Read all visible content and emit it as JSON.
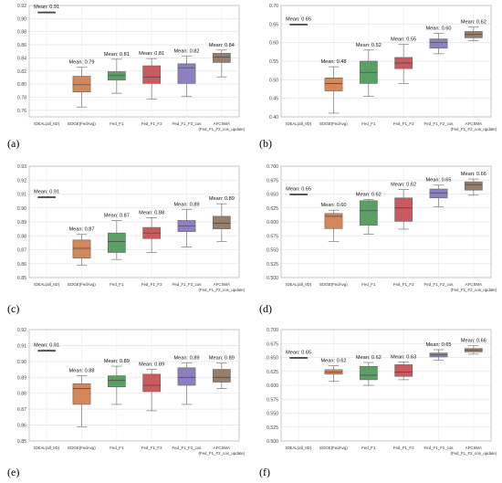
{
  "panel_labels": [
    "(a)",
    "(b)",
    "(c)",
    "(d)",
    "(e)",
    "(f)"
  ],
  "chart_data": [
    {
      "type": "box",
      "categories": [
        "IDEAL(all_IID)",
        "EDGE(FedAvg)",
        "Fed_F1",
        "Fed_F1_F2",
        "Fed_F1_F2_cos",
        "AFCSMA\n(Fed_F1_F2_cos_update)"
      ],
      "ylim": [
        0.75,
        0.92
      ],
      "yticks": [
        0.76,
        0.78,
        0.8,
        0.82,
        0.84,
        0.86,
        0.88,
        0.9,
        0.92
      ],
      "ytick_labels": [
        "0.76",
        "0.78",
        "0.80",
        "0.82",
        "0.84",
        "0.86",
        "0.88",
        "0.90",
        "0.92"
      ],
      "boxes": [
        {
          "min": 0.91,
          "q1": 0.91,
          "median": 0.91,
          "q3": 0.91,
          "max": 0.91
        },
        {
          "min": 0.765,
          "q1": 0.788,
          "median": 0.799,
          "q3": 0.812,
          "max": 0.826
        },
        {
          "min": 0.786,
          "q1": 0.806,
          "median": 0.813,
          "q3": 0.819,
          "max": 0.838
        },
        {
          "min": 0.777,
          "q1": 0.801,
          "median": 0.811,
          "q3": 0.828,
          "max": 0.839
        },
        {
          "min": 0.781,
          "q1": 0.801,
          "median": 0.825,
          "q3": 0.831,
          "max": 0.843
        },
        {
          "min": 0.811,
          "q1": 0.833,
          "median": 0.841,
          "q3": 0.847,
          "max": 0.852
        }
      ],
      "means": [
        "Mean: 0.91",
        "Mean: 0.79",
        "Mean: 0.81",
        "Mean: 0.81",
        "Mean: 0.82",
        "Mean: 0.84"
      ],
      "colors": [
        "#4c4c4c",
        "#d3875a",
        "#5aa065",
        "#c95a5f",
        "#8e80c0",
        "#967e6b"
      ]
    },
    {
      "type": "box",
      "categories": [
        "IDEAL(all_IID)",
        "EDGE(FedAvg)",
        "Fed_F1",
        "Fed_F1_F2",
        "Fed_F1_F2_cos",
        "AFCSMA\n(Fed_F1_F2_cos_update)"
      ],
      "ylim": [
        0.4,
        0.7
      ],
      "yticks": [
        0.4,
        0.45,
        0.5,
        0.55,
        0.6,
        0.65,
        0.7
      ],
      "ytick_labels": [
        "0.40",
        "0.45",
        "0.50",
        "0.55",
        "0.60",
        "0.65",
        "0.70"
      ],
      "boxes": [
        {
          "min": 0.65,
          "q1": 0.65,
          "median": 0.65,
          "q3": 0.65,
          "max": 0.65
        },
        {
          "min": 0.41,
          "q1": 0.47,
          "median": 0.49,
          "q3": 0.505,
          "max": 0.535
        },
        {
          "min": 0.455,
          "q1": 0.49,
          "median": 0.52,
          "q3": 0.55,
          "max": 0.58
        },
        {
          "min": 0.49,
          "q1": 0.53,
          "median": 0.545,
          "q3": 0.56,
          "max": 0.595
        },
        {
          "min": 0.57,
          "q1": 0.585,
          "median": 0.6,
          "q3": 0.61,
          "max": 0.625
        },
        {
          "min": 0.605,
          "q1": 0.613,
          "median": 0.622,
          "q3": 0.63,
          "max": 0.642
        }
      ],
      "means": [
        "Mean: 0.65",
        "Mean: 0.48",
        "Mean: 0.52",
        "Mean: 0.55",
        "Mean: 0.60",
        "Mean: 0.62"
      ],
      "colors": [
        "#4c4c4c",
        "#d3875a",
        "#5aa065",
        "#c95a5f",
        "#8e80c0",
        "#967e6b"
      ]
    },
    {
      "type": "box",
      "categories": [
        "IDEAL(all_IID)",
        "EDGE(FedAvg)",
        "Fed_F1",
        "Fed_F1_F2",
        "Fed_F1_F2_cos",
        "AFCSMA\n(Fed_F1_F2_cos_update)"
      ],
      "ylim": [
        0.85,
        0.93
      ],
      "yticks": [
        0.85,
        0.86,
        0.87,
        0.88,
        0.89,
        0.9,
        0.91,
        0.92,
        0.93
      ],
      "ytick_labels": [
        "0.85",
        "0.86",
        "0.87",
        "0.88",
        "0.89",
        "0.90",
        "0.91",
        "0.92",
        "0.93"
      ],
      "boxes": [
        {
          "min": 0.908,
          "q1": 0.908,
          "median": 0.908,
          "q3": 0.908,
          "max": 0.908
        },
        {
          "min": 0.859,
          "q1": 0.864,
          "median": 0.871,
          "q3": 0.877,
          "max": 0.881
        },
        {
          "min": 0.863,
          "q1": 0.868,
          "median": 0.876,
          "q3": 0.882,
          "max": 0.891
        },
        {
          "min": 0.868,
          "q1": 0.878,
          "median": 0.882,
          "q3": 0.886,
          "max": 0.893
        },
        {
          "min": 0.872,
          "q1": 0.883,
          "median": 0.887,
          "q3": 0.891,
          "max": 0.899
        },
        {
          "min": 0.876,
          "q1": 0.885,
          "median": 0.889,
          "q3": 0.894,
          "max": 0.903
        }
      ],
      "means": [
        "Mean: 0.91",
        "Mean: 0.87",
        "Mean: 0.87",
        "Mean: 0.88",
        "Mean: 0.89",
        "Mean: 0.89"
      ],
      "colors": [
        "#4c4c4c",
        "#d3875a",
        "#5aa065",
        "#c95a5f",
        "#8e80c0",
        "#967e6b"
      ]
    },
    {
      "type": "box",
      "categories": [
        "IDEAL(all_IID)",
        "EDGE(FedAvg)",
        "Fed_F1",
        "Fed_F1_F2",
        "Fed_F1_F2_cos",
        "AFCSMA\n(Fed_F1_F2_cos_update)"
      ],
      "ylim": [
        0.5,
        0.7
      ],
      "yticks": [
        0.5,
        0.525,
        0.55,
        0.575,
        0.6,
        0.625,
        0.65,
        0.675,
        0.7
      ],
      "ytick_labels": [
        "0.500",
        "0.525",
        "0.550",
        "0.575",
        "0.600",
        "0.625",
        "0.650",
        "0.675",
        "0.700"
      ],
      "boxes": [
        {
          "min": 0.65,
          "q1": 0.65,
          "median": 0.65,
          "q3": 0.65,
          "max": 0.65
        },
        {
          "min": 0.565,
          "q1": 0.588,
          "median": 0.61,
          "q3": 0.615,
          "max": 0.621
        },
        {
          "min": 0.578,
          "q1": 0.594,
          "median": 0.62,
          "q3": 0.638,
          "max": 0.64
        },
        {
          "min": 0.587,
          "q1": 0.601,
          "median": 0.625,
          "q3": 0.643,
          "max": 0.658
        },
        {
          "min": 0.627,
          "q1": 0.643,
          "median": 0.652,
          "q3": 0.659,
          "max": 0.666
        },
        {
          "min": 0.648,
          "q1": 0.657,
          "median": 0.667,
          "q3": 0.672,
          "max": 0.677
        }
      ],
      "means": [
        "Mean: 0.65",
        "Mean: 0.60",
        "Mean: 0.62",
        "Mean: 0.62",
        "Mean: 0.65",
        "Mean: 0.66"
      ],
      "colors": [
        "#4c4c4c",
        "#d3875a",
        "#5aa065",
        "#c95a5f",
        "#8e80c0",
        "#967e6b"
      ]
    },
    {
      "type": "box",
      "categories": [
        "IDEAL(all_IID)",
        "EDGE(FedAvg)",
        "Fed_F1",
        "Fed_F1_F2",
        "Fed_F1_F2_cos",
        "AFCSMA\n(Fed_F1_F2_cos_update)"
      ],
      "ylim": [
        0.85,
        0.92
      ],
      "yticks": [
        0.85,
        0.86,
        0.87,
        0.88,
        0.89,
        0.9,
        0.91,
        0.92
      ],
      "ytick_labels": [
        "0.85",
        "0.86",
        "0.87",
        "0.88",
        "0.89",
        "0.90",
        "0.91",
        "0.92"
      ],
      "boxes": [
        {
          "min": 0.907,
          "q1": 0.907,
          "median": 0.907,
          "q3": 0.907,
          "max": 0.907
        },
        {
          "min": 0.859,
          "q1": 0.873,
          "median": 0.883,
          "q3": 0.886,
          "max": 0.891
        },
        {
          "min": 0.873,
          "q1": 0.884,
          "median": 0.888,
          "q3": 0.891,
          "max": 0.897
        },
        {
          "min": 0.869,
          "q1": 0.881,
          "median": 0.885,
          "q3": 0.892,
          "max": 0.895
        },
        {
          "min": 0.873,
          "q1": 0.885,
          "median": 0.89,
          "q3": 0.896,
          "max": 0.899
        },
        {
          "min": 0.883,
          "q1": 0.887,
          "median": 0.89,
          "q3": 0.895,
          "max": 0.899
        }
      ],
      "means": [
        "Mean: 0.91",
        "Mean: 0.88",
        "Mean: 0.89",
        "Mean: 0.89",
        "Mean: 0.89",
        "Mean: 0.89"
      ],
      "colors": [
        "#4c4c4c",
        "#d3875a",
        "#5aa065",
        "#c95a5f",
        "#8e80c0",
        "#967e6b"
      ]
    },
    {
      "type": "box",
      "categories": [
        "IDEAL(all_IID)",
        "EDGE(FedAvg)",
        "Fed_F1",
        "Fed_F1_F2",
        "Fed_F1_F2_cos",
        "AFCSMA\n(Fed_F1_F2_cos_update)"
      ],
      "ylim": [
        0.5,
        0.7
      ],
      "yticks": [
        0.5,
        0.525,
        0.55,
        0.575,
        0.6,
        0.625,
        0.65,
        0.675,
        0.7
      ],
      "ytick_labels": [
        "0.500",
        "0.525",
        "0.550",
        "0.575",
        "0.600",
        "0.625",
        "0.650",
        "0.675",
        "0.700"
      ],
      "boxes": [
        {
          "min": 0.65,
          "q1": 0.65,
          "median": 0.65,
          "q3": 0.65,
          "max": 0.65
        },
        {
          "min": 0.607,
          "q1": 0.62,
          "median": 0.624,
          "q3": 0.628,
          "max": 0.635
        },
        {
          "min": 0.6,
          "q1": 0.61,
          "median": 0.618,
          "q3": 0.634,
          "max": 0.641
        },
        {
          "min": 0.61,
          "q1": 0.616,
          "median": 0.624,
          "q3": 0.637,
          "max": 0.642
        },
        {
          "min": 0.645,
          "q1": 0.651,
          "median": 0.655,
          "q3": 0.658,
          "max": 0.664
        },
        {
          "min": 0.656,
          "q1": 0.66,
          "median": 0.663,
          "q3": 0.666,
          "max": 0.671
        }
      ],
      "means": [
        "Mean: 0.65",
        "Mean: 0.62",
        "Mean: 0.62",
        "Mean: 0.63",
        "Mean: 0.65",
        "Mean: 0.66"
      ],
      "colors": [
        "#4c4c4c",
        "#d3875a",
        "#5aa065",
        "#c95a5f",
        "#8e80c0",
        "#967e6b"
      ]
    }
  ]
}
